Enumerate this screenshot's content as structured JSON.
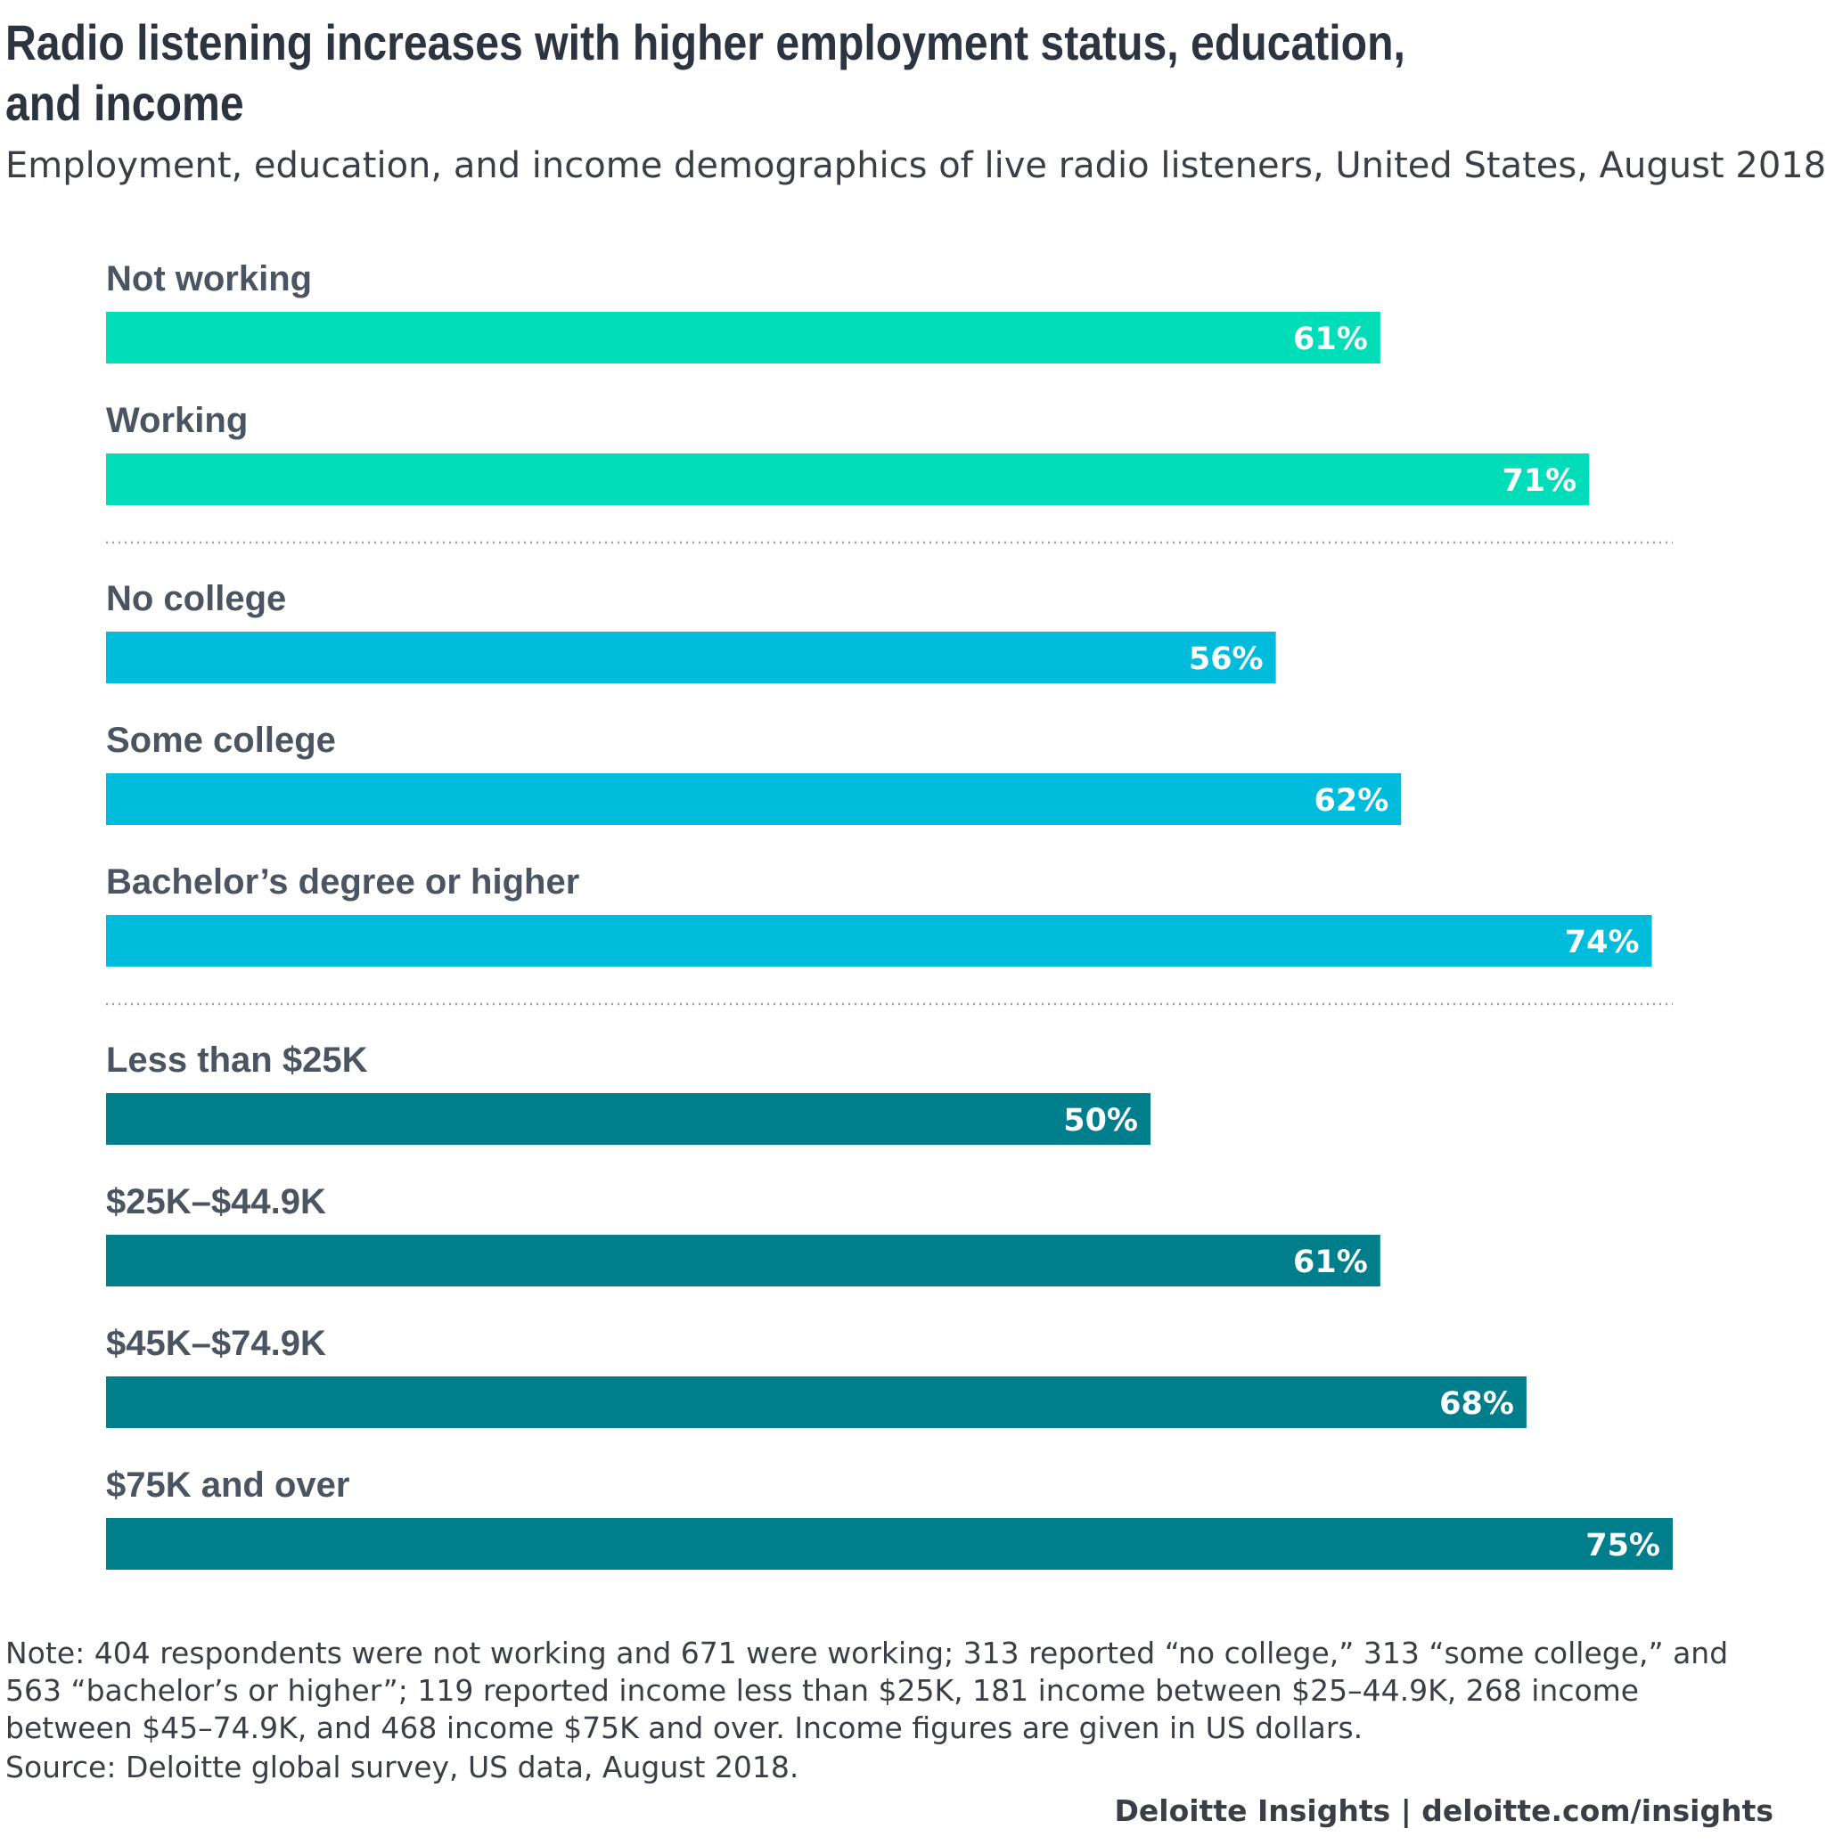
{
  "chart_data": {
    "type": "bar",
    "orientation": "horizontal",
    "title": "Radio listening increases with higher employment status, education, and income",
    "subtitle": "Employment, education, and income demographics of live radio listeners, United States, August 2018",
    "xlim": [
      0,
      75
    ],
    "grid": false,
    "groups": [
      {
        "color": "#00ddb8",
        "categories": [
          "Not working",
          "Working"
        ],
        "values": [
          61,
          71
        ],
        "labels": [
          "61%",
          "71%"
        ]
      },
      {
        "color": "#00bcdc",
        "categories": [
          "No college",
          "Some college",
          "Bachelor’s degree or higher"
        ],
        "values": [
          56,
          62,
          74
        ],
        "labels": [
          "56%",
          "62%",
          "74%"
        ]
      },
      {
        "color": "#017e8b",
        "categories": [
          "Less than $25K",
          "$25K–$44.9K",
          "$45K–$74.9K",
          "$75K and over"
        ],
        "values": [
          50,
          61,
          68,
          75
        ],
        "labels": [
          "50%",
          "61%",
          "68%",
          "75%"
        ]
      }
    ]
  },
  "note": "Note: 404 respondents were not working and 671 were working; 313 reported “no college,” 313 “some college,” and 563 “bachelor’s or higher”; 119 reported income less than $25K, 181 income between $25–44.9K, 268 income between $45–74.9K, and 468 income $75K and over. Income figures are given in US dollars.",
  "source": "Source: Deloitte global survey, US data, August 2018.",
  "footer": "Deloitte Insights | deloitte.com/insights"
}
